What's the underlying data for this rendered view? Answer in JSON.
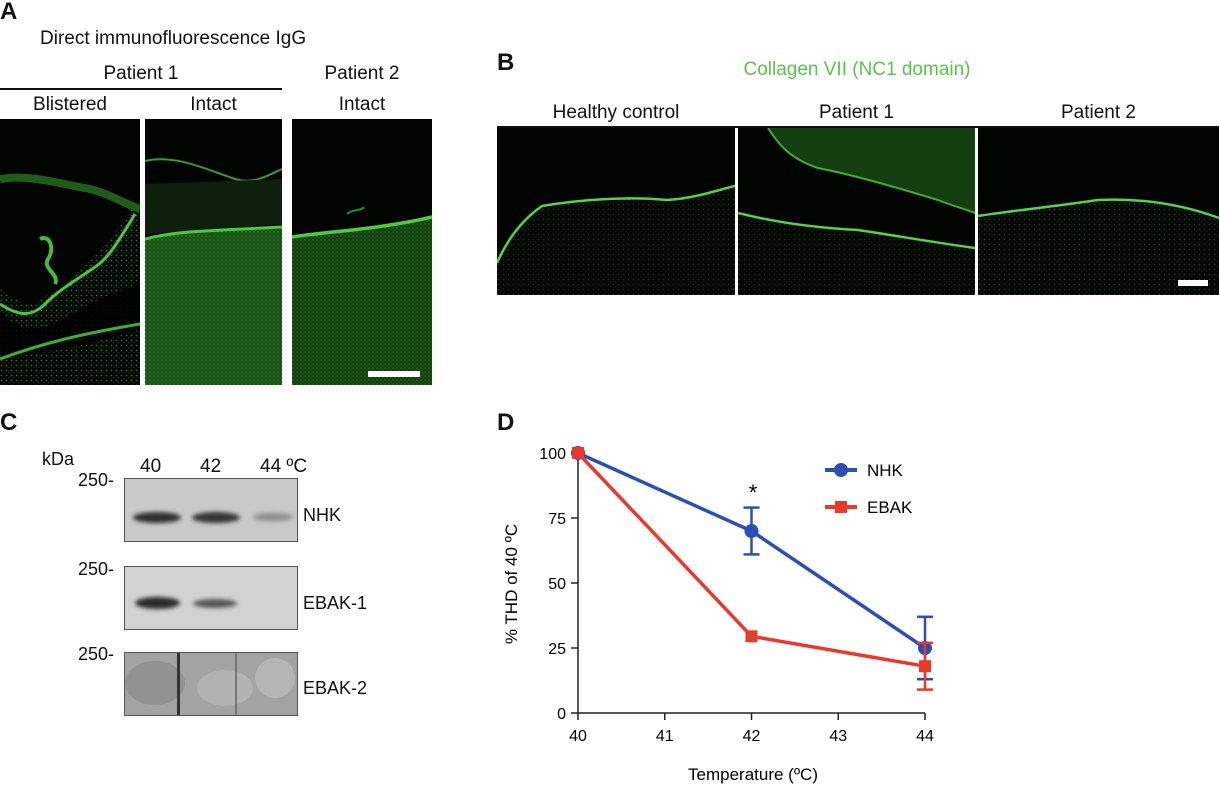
{
  "panel_labels": {
    "a": "A",
    "b": "B",
    "c": "C",
    "d": "D"
  },
  "panel_a": {
    "title": "Direct immunofluorescence IgG",
    "group1": "Patient 1",
    "col1": "Blistered",
    "col2": "Intact",
    "group2": "Patient 2",
    "col3": "Intact"
  },
  "panel_b": {
    "title": "Collagen VII (NC1 domain)",
    "title_color": "#5cc24a",
    "col1": "Healthy control",
    "col2": "Patient 1",
    "col3": "Patient 2"
  },
  "panel_c": {
    "kda": "kDa",
    "lanes": [
      "40",
      "42",
      "44 ºC"
    ],
    "markers": [
      "250-",
      "250-",
      "250-"
    ],
    "blots": [
      "NHK",
      "EBAK-1",
      "EBAK-2"
    ]
  },
  "chart_data": {
    "type": "line",
    "x": [
      40,
      42,
      44
    ],
    "series": [
      {
        "name": "NHK",
        "color": "#2b4fb5",
        "marker": "circle",
        "values": [
          100,
          70,
          25
        ],
        "errors": [
          0,
          9,
          12
        ]
      },
      {
        "name": "EBAK",
        "color": "#e8392b",
        "marker": "square",
        "values": [
          100,
          29.5,
          18
        ],
        "errors": [
          0,
          0,
          9
        ]
      }
    ],
    "xlabel": "Temperature (ºC)",
    "ylabel": "% THD of 40 ºC",
    "xlim": [
      40,
      44
    ],
    "ylim": [
      0,
      100
    ],
    "xticks": [
      "40",
      "41",
      "42",
      "43",
      "44"
    ],
    "yticks": [
      "0",
      "25",
      "50",
      "75",
      "100"
    ],
    "annotation": "*",
    "legend": "top-right",
    "grid": false
  }
}
